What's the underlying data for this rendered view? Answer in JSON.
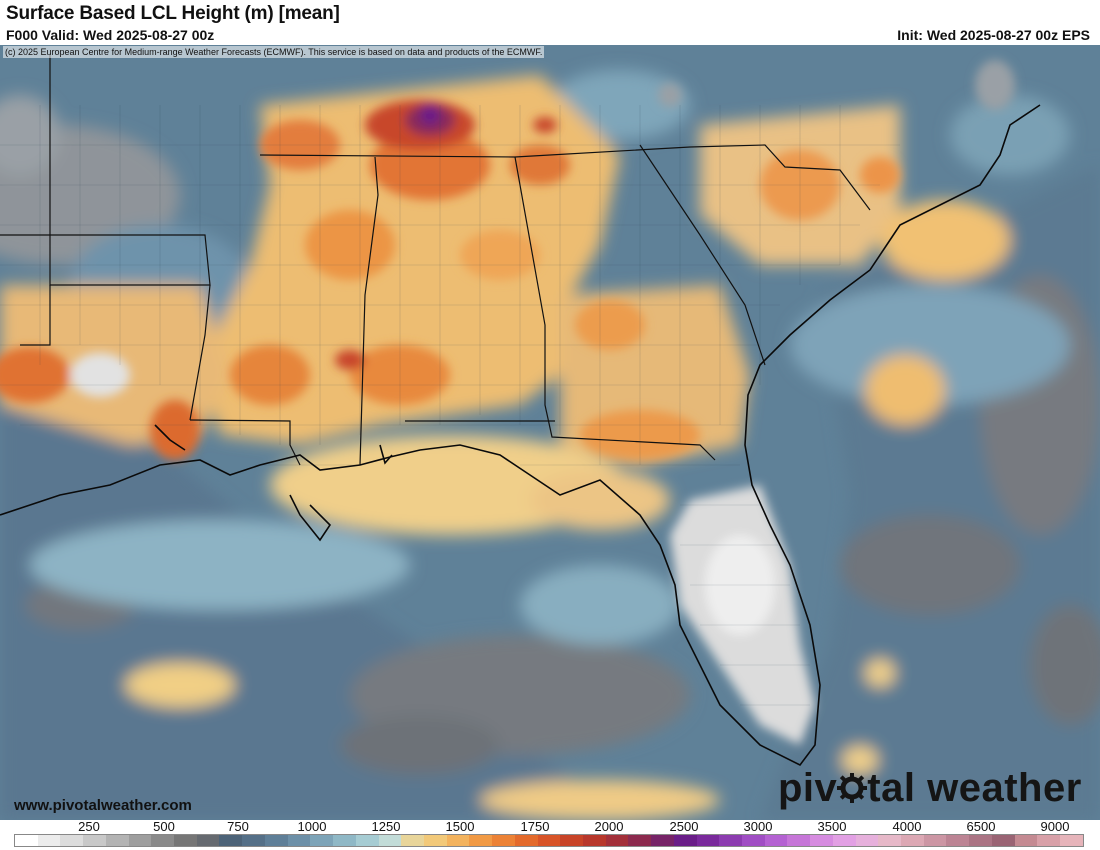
{
  "header": {
    "title": "Surface Based LCL Height (m) [mean]",
    "valid": "F000 Valid: Wed 2025-08-27 00z",
    "init": "Init: Wed 2025-08-27 00z EPS"
  },
  "copyright": "(c) 2025 European Centre for Medium-range Weather Forecasts (ECMWF). This service is based on data and products of the ECMWF.",
  "footer": {
    "url": "www.pivotalweather.com",
    "logo_part1": "piv",
    "logo_part2": "tal weather"
  },
  "colorbar": {
    "labels": [
      "250",
      "500",
      "750",
      "1000",
      "1250",
      "1500",
      "1750",
      "2000",
      "2500",
      "3000",
      "3500",
      "4000",
      "6500",
      "9000"
    ],
    "colors": [
      "#ffffff",
      "#ececec",
      "#dcdcdc",
      "#c8c8c8",
      "#b3b3b3",
      "#9e9e9e",
      "#8a8a8a",
      "#767676",
      "#666a70",
      "#4d6378",
      "#557088",
      "#5f7f98",
      "#6d90a8",
      "#7da4b8",
      "#8fb8c6",
      "#a6ccd3",
      "#c2dcd8",
      "#e8d59a",
      "#f2c979",
      "#f3b35e",
      "#f19a45",
      "#ec8236",
      "#e36a2c",
      "#d85428",
      "#c84428",
      "#b8382c",
      "#a3303a",
      "#8c2a4e",
      "#772468",
      "#6a1e88",
      "#7a2a9c",
      "#8c3cb0",
      "#a04ec4",
      "#b462d2",
      "#c676d8",
      "#d68ce0",
      "#e2a0e4",
      "#e6b0dc",
      "#e6b8c8",
      "#dca8b4",
      "#cc96a4",
      "#bc8494",
      "#ab7484",
      "#9a6474",
      "#c48a92",
      "#d8a0a8",
      "#e6b4ba"
    ],
    "accent_brand": "#151515"
  }
}
